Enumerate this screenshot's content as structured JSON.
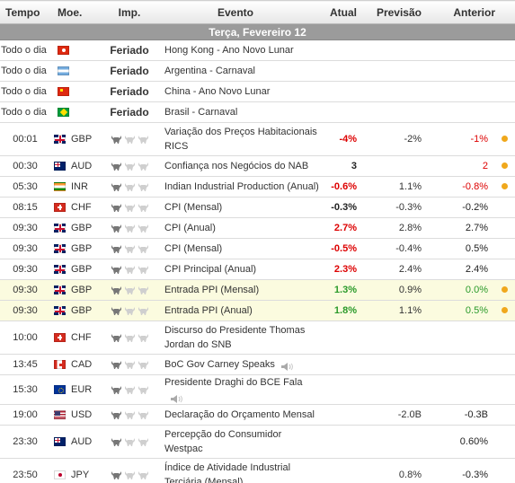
{
  "headers": {
    "time": "Tempo",
    "currency": "Moe.",
    "importance": "Imp.",
    "event": "Evento",
    "actual": "Atual",
    "forecast": "Previsão",
    "previous": "Anterior"
  },
  "day_label": "Terça, Fevereiro 12",
  "holiday_label": "Feriado",
  "colors": {
    "negative": "#dd0000",
    "positive": "#2a9a2a",
    "neutral": "#222222",
    "alert_dot": "#f0a81c",
    "highlight_row": "#fbfbdf"
  },
  "rows": [
    {
      "time": "Todo o dia",
      "flag": "hk",
      "currency": "",
      "holiday": true,
      "event": "Hong Kong - Ano Novo Lunar",
      "actual": "",
      "actual_class": "neu",
      "forecast": "",
      "previous": "",
      "previous_class": "neu",
      "dot": false,
      "speech": false,
      "height": "h23"
    },
    {
      "time": "Todo o dia",
      "flag": "ar",
      "currency": "",
      "holiday": true,
      "event": "Argentina - Carnaval",
      "actual": "",
      "actual_class": "neu",
      "forecast": "",
      "previous": "",
      "previous_class": "neu",
      "dot": false,
      "speech": false,
      "height": "h23"
    },
    {
      "time": "Todo o dia",
      "flag": "cn",
      "currency": "",
      "holiday": true,
      "event": "China - Ano Novo Lunar",
      "actual": "",
      "actual_class": "neu",
      "forecast": "",
      "previous": "",
      "previous_class": "neu",
      "dot": false,
      "speech": false,
      "height": "h23"
    },
    {
      "time": "Todo o dia",
      "flag": "br",
      "currency": "",
      "holiday": true,
      "event": "Brasil - Carnaval",
      "actual": "",
      "actual_class": "neu",
      "forecast": "",
      "previous": "",
      "previous_class": "neu",
      "dot": false,
      "speech": false,
      "height": "h23"
    },
    {
      "time": "00:01",
      "flag": "gb",
      "currency": "GBP",
      "holiday": false,
      "bulls": 1,
      "event": "Variação dos Preços Habitacionais RICS",
      "actual": "-4%",
      "actual_class": "neg",
      "forecast": "-2%",
      "previous": "-1%",
      "previous_class": "neg",
      "dot": true,
      "speech": false,
      "height": "h36"
    },
    {
      "time": "00:30",
      "flag": "au",
      "currency": "AUD",
      "holiday": false,
      "bulls": 1,
      "event": "Confiança nos Negócios do NAB",
      "actual": "3",
      "actual_class": "neu",
      "forecast": "",
      "previous": "2",
      "previous_class": "neg",
      "dot": true,
      "speech": false,
      "height": "h23"
    },
    {
      "time": "05:30",
      "flag": "in",
      "currency": "INR",
      "holiday": false,
      "bulls": 1,
      "event": "Indian Industrial Production (Anual)",
      "actual": "-0.6%",
      "actual_class": "neg",
      "forecast": "1.1%",
      "previous": "-0.8%",
      "previous_class": "neg",
      "dot": true,
      "speech": false,
      "height": "h23"
    },
    {
      "time": "08:15",
      "flag": "ch",
      "currency": "CHF",
      "holiday": false,
      "bulls": 1,
      "event": "CPI (Mensal)",
      "actual": "-0.3%",
      "actual_class": "neu",
      "forecast": "-0.3%",
      "previous": "-0.2%",
      "previous_class": "neu",
      "dot": false,
      "speech": false,
      "height": "h23"
    },
    {
      "time": "09:30",
      "flag": "gb",
      "currency": "GBP",
      "holiday": false,
      "bulls": 1,
      "event": "CPI (Anual)",
      "actual": "2.7%",
      "actual_class": "neg",
      "forecast": "2.8%",
      "previous": "2.7%",
      "previous_class": "neu",
      "dot": false,
      "speech": false,
      "height": "h23"
    },
    {
      "time": "09:30",
      "flag": "gb",
      "currency": "GBP",
      "holiday": false,
      "bulls": 1,
      "event": "CPI (Mensal)",
      "actual": "-0.5%",
      "actual_class": "neg",
      "forecast": "-0.4%",
      "previous": "0.5%",
      "previous_class": "neu",
      "dot": false,
      "speech": false,
      "height": "h23"
    },
    {
      "time": "09:30",
      "flag": "gb",
      "currency": "GBP",
      "holiday": false,
      "bulls": 1,
      "event": "CPI Principal (Anual)",
      "actual": "2.3%",
      "actual_class": "neg",
      "forecast": "2.4%",
      "previous": "2.4%",
      "previous_class": "neu",
      "dot": false,
      "speech": false,
      "height": "h23"
    },
    {
      "time": "09:30",
      "flag": "gb",
      "currency": "GBP",
      "holiday": false,
      "bulls": 1,
      "event": "Entrada PPI (Mensal)",
      "actual": "1.3%",
      "actual_class": "pos",
      "forecast": "0.9%",
      "previous": "0.0%",
      "previous_class": "pos",
      "dot": true,
      "speech": false,
      "height": "h23",
      "highlight": true
    },
    {
      "time": "09:30",
      "flag": "gb",
      "currency": "GBP",
      "holiday": false,
      "bulls": 1,
      "event": "Entrada PPI (Anual)",
      "actual": "1.8%",
      "actual_class": "pos",
      "forecast": "1.1%",
      "previous": "0.5%",
      "previous_class": "pos",
      "dot": true,
      "speech": false,
      "height": "h23",
      "highlight": true
    },
    {
      "time": "10:00",
      "flag": "ch",
      "currency": "CHF",
      "holiday": false,
      "bulls": 1,
      "event": "Discurso do Presidente Thomas Jordan do SNB",
      "actual": "",
      "actual_class": "neu",
      "forecast": "",
      "previous": "",
      "previous_class": "neu",
      "dot": false,
      "speech": false,
      "height": "h36"
    },
    {
      "time": "13:45",
      "flag": "ca",
      "currency": "CAD",
      "holiday": false,
      "bulls": 1,
      "event": "BoC Gov Carney Speaks",
      "actual": "",
      "actual_class": "neu",
      "forecast": "",
      "previous": "",
      "previous_class": "neu",
      "dot": false,
      "speech": true,
      "height": "h23"
    },
    {
      "time": "15:30",
      "flag": "eu",
      "currency": "EUR",
      "holiday": false,
      "bulls": 1,
      "event": "Presidente Draghi do BCE Fala",
      "actual": "",
      "actual_class": "neu",
      "forecast": "",
      "previous": "",
      "previous_class": "neu",
      "dot": false,
      "speech": true,
      "height": "h23"
    },
    {
      "time": "19:00",
      "flag": "us",
      "currency": "USD",
      "holiday": false,
      "bulls": 1,
      "event": "Declaração do Orçamento Mensal",
      "actual": "",
      "actual_class": "neu",
      "forecast": "-2.0B",
      "previous": "-0.3B",
      "previous_class": "neu",
      "dot": false,
      "speech": false,
      "height": "h23"
    },
    {
      "time": "23:30",
      "flag": "au",
      "currency": "AUD",
      "holiday": false,
      "bulls": 1,
      "event": "Percepção do Consumidor Westpac",
      "actual": "",
      "actual_class": "neu",
      "forecast": "",
      "previous": "0.60%",
      "previous_class": "neu",
      "dot": false,
      "speech": false,
      "height": "h36"
    },
    {
      "time": "23:50",
      "flag": "jp",
      "currency": "JPY",
      "holiday": false,
      "bulls": 1,
      "event": "Índice de Atividade Industrial Terciária (Mensal)",
      "actual": "",
      "actual_class": "neu",
      "forecast": "0.8%",
      "previous": "-0.3%",
      "previous_class": "neu",
      "dot": false,
      "speech": false,
      "height": "h36"
    }
  ]
}
